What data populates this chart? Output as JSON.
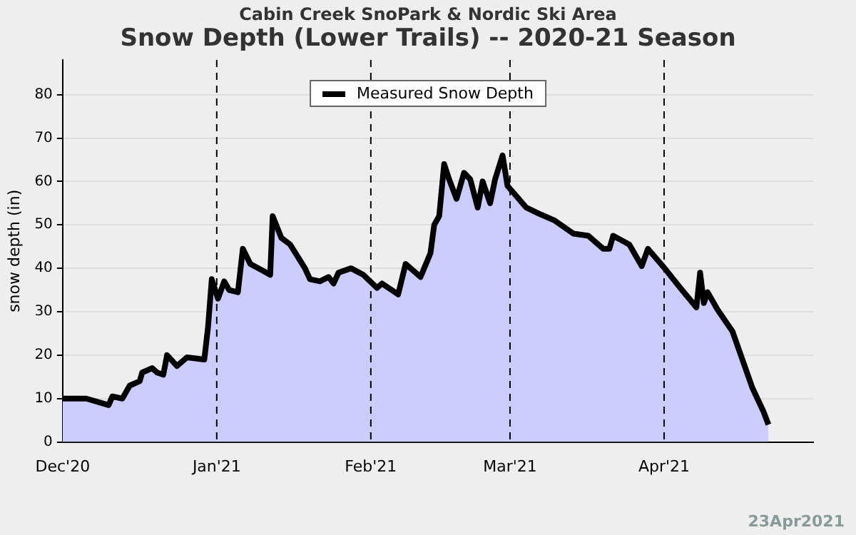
{
  "chart_data": {
    "type": "area",
    "title": "Snow Depth (Lower Trails) -- 2020-21 Season",
    "subtitle": "Cabin Creek SnoPark & Nordic Ski Area",
    "ylabel": "snow depth (in)",
    "annotations": [
      "23Apr2021"
    ],
    "x": [
      "2020-12-01T00:00",
      "2020-12-05T18:00",
      "2020-12-10T06:00",
      "2020-12-11T00:00",
      "2020-12-13T00:00",
      "2020-12-14T12:00",
      "2020-12-16T12:00",
      "2020-12-17T00:00",
      "2020-12-19T00:00",
      "2020-12-20T00:00",
      "2020-12-21T06:00",
      "2020-12-22T00:00",
      "2020-12-24T00:00",
      "2020-12-26T00:00",
      "2020-12-29T12:00",
      "2020-12-30T06:00",
      "2020-12-31T00:00",
      "2021-01-01T06:00",
      "2021-01-02T12:00",
      "2021-01-03T12:00",
      "2021-01-05T06:00",
      "2021-01-06T06:00",
      "2021-01-07T18:00",
      "2021-01-11T00:00",
      "2021-01-11T18:00",
      "2021-01-12T06:00",
      "2021-01-14T00:00",
      "2021-01-15T18:00",
      "2021-01-18T18:00",
      "2021-01-19T18:00",
      "2021-01-21T18:00",
      "2021-01-23T12:00",
      "2021-01-24T12:00",
      "2021-01-25T12:00",
      "2021-01-28T00:00",
      "2021-01-30T12:00",
      "2021-02-02T06:00",
      "2021-02-03T06:00",
      "2021-02-06T12:00",
      "2021-02-08T00:00",
      "2021-02-11T00:00",
      "2021-02-13T00:00",
      "2021-02-13T18:00",
      "2021-02-14T18:00",
      "2021-02-15T18:00",
      "2021-02-16T18:00",
      "2021-02-18T06:00",
      "2021-02-19T18:00",
      "2021-02-21T00:00",
      "2021-02-22T12:00",
      "2021-02-23T12:00",
      "2021-02-25T00:00",
      "2021-02-26T00:00",
      "2021-02-27T12:00",
      "2021-02-28T12:00",
      "2021-03-04T06:00",
      "2021-03-07T00:00",
      "2021-03-10T00:00",
      "2021-03-13T18:00",
      "2021-03-16T18:00",
      "2021-03-19T18:00",
      "2021-03-21T00:00",
      "2021-03-21T18:00",
      "2021-03-25T00:00",
      "2021-03-27T12:00",
      "2021-03-28T18:00",
      "2021-03-31T18:00",
      "2021-04-04T06:00",
      "2021-04-07T12:00",
      "2021-04-08T06:00",
      "2021-04-09T00:00",
      "2021-04-09T18:00",
      "2021-04-11T18:00",
      "2021-04-14T18:00",
      "2021-04-16T18:00",
      "2021-04-18T18:00",
      "2021-04-21T00:00",
      "2021-04-22T00:00"
    ],
    "series": [
      {
        "name": "Measured Snow Depth",
        "color": "#000000",
        "values": [
          10,
          10,
          8.5,
          10.5,
          10,
          13,
          14,
          16,
          17,
          16,
          15.5,
          20,
          17.5,
          19.5,
          19,
          26.5,
          37.5,
          33,
          37,
          35,
          34.5,
          44.5,
          41,
          39,
          38.5,
          52,
          47,
          45.5,
          40,
          37.5,
          37,
          38,
          36.5,
          39,
          40,
          38.5,
          35.5,
          36.5,
          34,
          41,
          38,
          43.5,
          50,
          52,
          64,
          60.5,
          56,
          62,
          60.5,
          54,
          60,
          55,
          60.5,
          66,
          59,
          54,
          52.5,
          51,
          48,
          47.5,
          44.5,
          44.5,
          47.5,
          45.5,
          40.5,
          44.5,
          40.5,
          35.5,
          31,
          39,
          32,
          34.5,
          30.5,
          25.5,
          19,
          12.5,
          7,
          4
        ]
      }
    ],
    "xlim": [
      "2020-12-01",
      "2021-05-01"
    ],
    "xticks": [
      {
        "value": "2020-12-01",
        "label": "Dec'20"
      },
      {
        "value": "2021-01-01",
        "label": "Jan'21"
      },
      {
        "value": "2021-02-01",
        "label": "Feb'21"
      },
      {
        "value": "2021-03-01",
        "label": "Mar'21"
      },
      {
        "value": "2021-04-01",
        "label": "Apr'21"
      }
    ],
    "ylim": [
      0,
      88
    ],
    "yticks": [
      0,
      10,
      20,
      30,
      40,
      50,
      60,
      70,
      80
    ],
    "ref_lines": [
      {
        "axis": "x",
        "value": "2021-01-01",
        "color": "#000000",
        "line_style": "dashed"
      },
      {
        "axis": "x",
        "value": "2021-02-01",
        "color": "#000000",
        "line_style": "dashed"
      },
      {
        "axis": "x",
        "value": "2021-03-01",
        "color": "#000000",
        "line_style": "dashed"
      },
      {
        "axis": "x",
        "value": "2021-04-01",
        "color": "#000000",
        "line_style": "dashed"
      }
    ],
    "grid": "y",
    "legend": "top",
    "line_style": "solid",
    "marker": "none"
  }
}
